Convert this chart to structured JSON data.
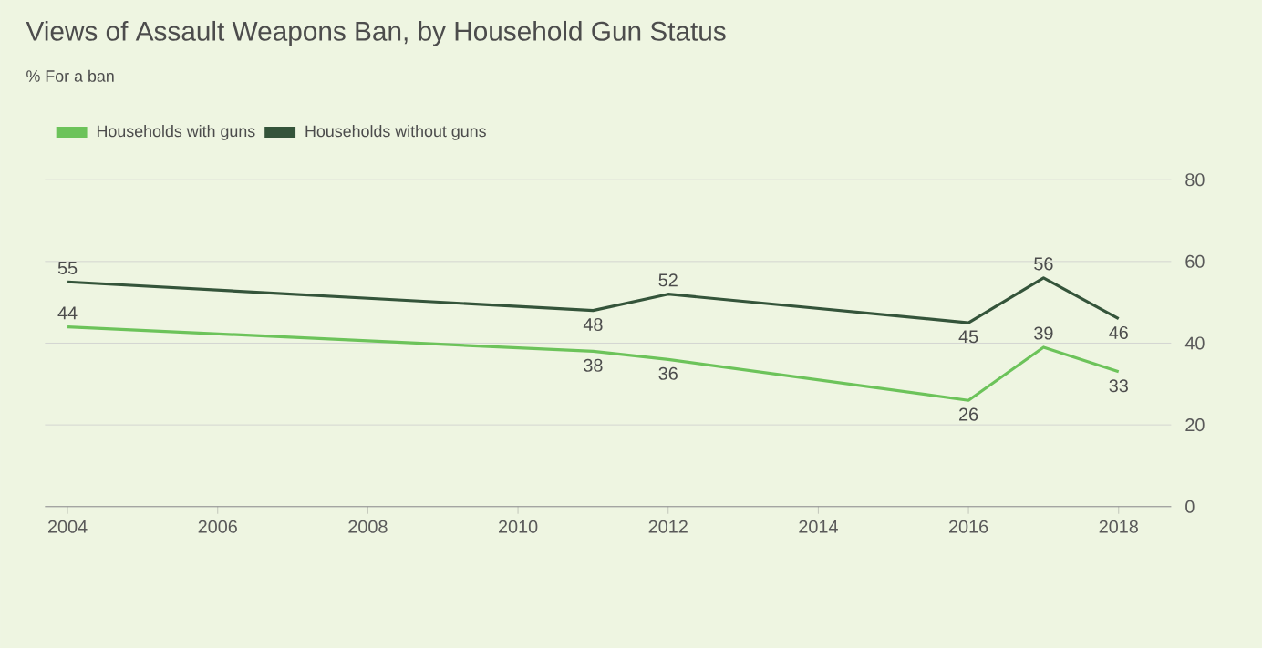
{
  "chart_data": {
    "type": "line",
    "title": "Views of Assault Weapons Ban, by Household Gun Status",
    "subtitle": "% For a ban",
    "x": [
      2004,
      2011,
      2012,
      2016,
      2017,
      2018
    ],
    "series": [
      {
        "name": "Households with guns",
        "color": "#6cc35a",
        "values": [
          44,
          38,
          36,
          26,
          39,
          33
        ]
      },
      {
        "name": "Households without guns",
        "color": "#34543a",
        "values": [
          55,
          48,
          52,
          45,
          56,
          46
        ]
      }
    ],
    "xlim": [
      2003.7,
      2018.7
    ],
    "xticks": [
      2004,
      2006,
      2008,
      2010,
      2012,
      2014,
      2016,
      2018
    ],
    "ylim": [
      0,
      80
    ],
    "yticks": [
      0,
      20,
      40,
      60,
      80
    ],
    "grid": "y",
    "legend": "top left",
    "data_labels": true,
    "marker": "none",
    "line_style": "solid"
  }
}
